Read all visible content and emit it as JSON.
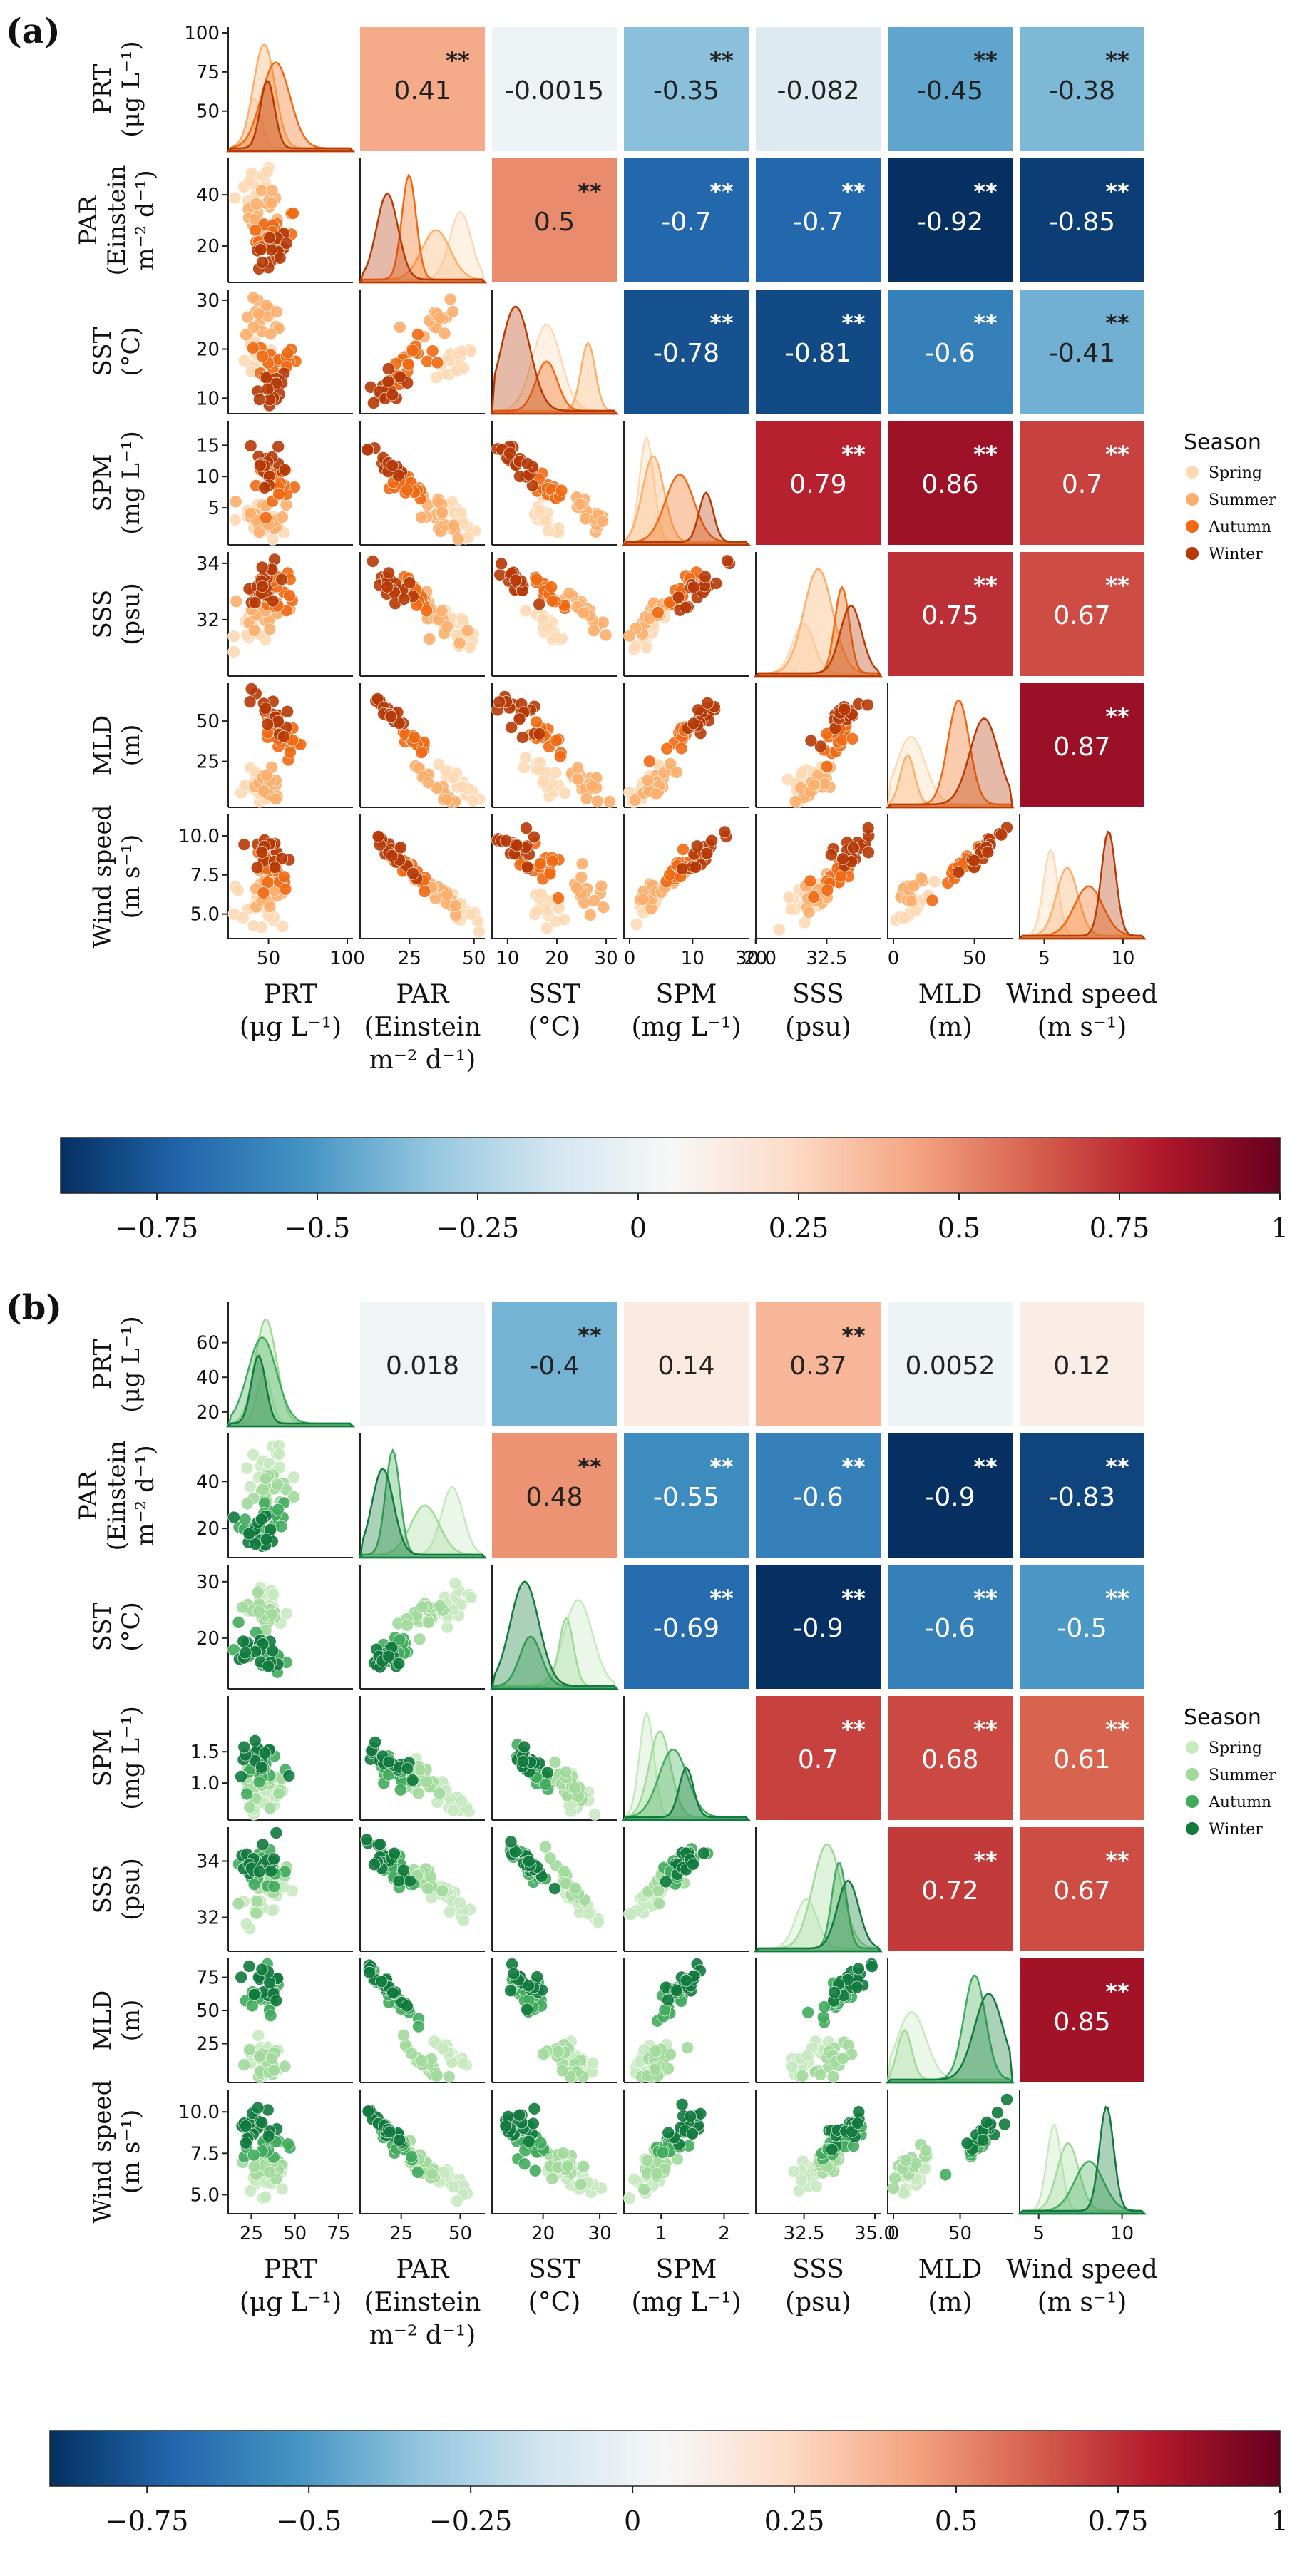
{
  "variables": [
    "PRT",
    "PAR",
    "SST",
    "SPM",
    "SSS",
    "MLD",
    "Wind speed"
  ],
  "axis_labels": [
    {
      "name": "PRT",
      "unit": "(μg L⁻¹)"
    },
    {
      "name": "PAR",
      "unit": "(Einstein",
      "unit2": "m⁻² d⁻¹)"
    },
    {
      "name": "SST",
      "unit": "(°C)"
    },
    {
      "name": "SPM",
      "unit": "(mg L⁻¹)"
    },
    {
      "name": "SSS",
      "unit": "(psu)"
    },
    {
      "name": "MLD",
      "unit": "(m)"
    },
    {
      "name": "Wind speed",
      "unit": "(m s⁻¹)"
    }
  ],
  "significance_marker": "**",
  "colorbar": {
    "type": "diverging",
    "range": [
      -0.9,
      1.0
    ],
    "ticks": [
      -0.75,
      -0.5,
      -0.25,
      0,
      0.25,
      0.5,
      0.75,
      1
    ],
    "tick_labels": [
      "−0.75",
      "−0.5",
      "−0.25",
      "0",
      "0.25",
      "0.5",
      "0.75",
      "1"
    ],
    "colors": [
      "#053061",
      "#2166ac",
      "#4393c3",
      "#92c5de",
      "#d1e5f0",
      "#f7f7f7",
      "#fddbc7",
      "#f4a582",
      "#d6604d",
      "#b2182b",
      "#67001f"
    ]
  },
  "chart_data": [
    {
      "panel": "(a)",
      "type": "heatmap",
      "title": "",
      "legend": {
        "title": "Season",
        "entries": [
          "Spring",
          "Summer",
          "Autumn",
          "Winter"
        ],
        "colors": [
          "#fdd9b4",
          "#fdae6b",
          "#f16913",
          "#b63a06"
        ],
        "placement": "right"
      },
      "correlations": [
        {
          "pair": [
            "PAR",
            "PRT"
          ],
          "r": "0.41",
          "sig": true
        },
        {
          "pair": [
            "SST",
            "PRT"
          ],
          "r": "-0.0015",
          "sig": false
        },
        {
          "pair": [
            "SPM",
            "PRT"
          ],
          "r": "-0.35",
          "sig": true
        },
        {
          "pair": [
            "SSS",
            "PRT"
          ],
          "r": "-0.082",
          "sig": false
        },
        {
          "pair": [
            "MLD",
            "PRT"
          ],
          "r": "-0.45",
          "sig": true
        },
        {
          "pair": [
            "Wind speed",
            "PRT"
          ],
          "r": "-0.38",
          "sig": true
        },
        {
          "pair": [
            "SST",
            "PAR"
          ],
          "r": "0.5",
          "sig": true
        },
        {
          "pair": [
            "SPM",
            "PAR"
          ],
          "r": "-0.7",
          "sig": true
        },
        {
          "pair": [
            "SSS",
            "PAR"
          ],
          "r": "-0.7",
          "sig": true
        },
        {
          "pair": [
            "MLD",
            "PAR"
          ],
          "r": "-0.92",
          "sig": true
        },
        {
          "pair": [
            "Wind speed",
            "PAR"
          ],
          "r": "-0.85",
          "sig": true
        },
        {
          "pair": [
            "SPM",
            "SST"
          ],
          "r": "-0.78",
          "sig": true
        },
        {
          "pair": [
            "SSS",
            "SST"
          ],
          "r": "-0.81",
          "sig": true
        },
        {
          "pair": [
            "MLD",
            "SST"
          ],
          "r": "-0.6",
          "sig": true
        },
        {
          "pair": [
            "Wind speed",
            "SST"
          ],
          "r": "-0.41",
          "sig": true
        },
        {
          "pair": [
            "SSS",
            "SPM"
          ],
          "r": "0.79",
          "sig": true
        },
        {
          "pair": [
            "MLD",
            "SPM"
          ],
          "r": "0.86",
          "sig": true
        },
        {
          "pair": [
            "Wind speed",
            "SPM"
          ],
          "r": "0.7",
          "sig": true
        },
        {
          "pair": [
            "MLD",
            "SSS"
          ],
          "r": "0.75",
          "sig": true
        },
        {
          "pair": [
            "Wind speed",
            "SSS"
          ],
          "r": "0.67",
          "sig": true
        },
        {
          "pair": [
            "Wind speed",
            "MLD"
          ],
          "r": "0.87",
          "sig": true
        }
      ],
      "y_ticks": [
        [
          {
            "v": 50,
            "l": "50"
          },
          {
            "v": 75,
            "l": "75"
          },
          {
            "v": 100,
            "l": "100"
          }
        ],
        [
          {
            "v": 20,
            "l": "20"
          },
          {
            "v": 40,
            "l": "40"
          }
        ],
        [
          {
            "v": 10,
            "l": "10"
          },
          {
            "v": 20,
            "l": "20"
          },
          {
            "v": 30,
            "l": "30"
          }
        ],
        [
          {
            "v": 5,
            "l": "5"
          },
          {
            "v": 10,
            "l": "10"
          },
          {
            "v": 15,
            "l": "15"
          }
        ],
        [
          {
            "v": 32,
            "l": "32"
          },
          {
            "v": 34,
            "l": "34"
          }
        ],
        [
          {
            "v": 25,
            "l": "25"
          },
          {
            "v": 50,
            "l": "50"
          }
        ],
        [
          {
            "v": 5,
            "l": "5.0"
          },
          {
            "v": 7.5,
            "l": "7.5"
          },
          {
            "v": 10,
            "l": "10.0"
          }
        ]
      ],
      "x_ticks": [
        [
          {
            "v": 50,
            "l": "50"
          },
          {
            "v": 100,
            "l": "100"
          }
        ],
        [
          {
            "v": 25,
            "l": "25"
          },
          {
            "v": 50,
            "l": "50"
          }
        ],
        [
          {
            "v": 10,
            "l": "10"
          },
          {
            "v": 20,
            "l": "20"
          },
          {
            "v": 30,
            "l": "30"
          }
        ],
        [
          {
            "v": 0,
            "l": "0"
          },
          {
            "v": 10,
            "l": "10"
          },
          {
            "v": 20,
            "l": "20"
          }
        ],
        [
          {
            "v": 30,
            "l": "30.0"
          },
          {
            "v": 32.5,
            "l": "32.5"
          }
        ],
        [
          {
            "v": 0,
            "l": "0"
          },
          {
            "v": 50,
            "l": "50"
          }
        ],
        [
          {
            "v": 5,
            "l": "5"
          },
          {
            "v": 10,
            "l": "10"
          }
        ]
      ],
      "ranges": [
        [
          28,
          100
        ],
        [
          8,
          52
        ],
        [
          8,
          31
        ],
        [
          0,
          18
        ],
        [
          30.2,
          34.2
        ],
        [
          0,
          70
        ],
        [
          3.8,
          11
        ]
      ],
      "season_means": [
        [
          42,
          48,
          55,
          50
        ],
        [
          44,
          35,
          25,
          17
        ],
        [
          18,
          26,
          18,
          12
        ],
        [
          3,
          4,
          8,
          12
        ],
        [
          31.7,
          32.2,
          33.0,
          33.3
        ],
        [
          12,
          10,
          40,
          55
        ],
        [
          5.5,
          6.5,
          7.8,
          9.0
        ]
      ]
    },
    {
      "panel": "(b)",
      "type": "heatmap",
      "title": "",
      "legend": {
        "title": "Season",
        "entries": [
          "Spring",
          "Summer",
          "Autumn",
          "Winter"
        ],
        "colors": [
          "#c7e9c0",
          "#a1d99b",
          "#41ab5d",
          "#117a3d"
        ],
        "placement": "right"
      },
      "correlations": [
        {
          "pair": [
            "PAR",
            "PRT"
          ],
          "r": "0.018",
          "sig": false
        },
        {
          "pair": [
            "SST",
            "PRT"
          ],
          "r": "-0.4",
          "sig": true
        },
        {
          "pair": [
            "SPM",
            "PRT"
          ],
          "r": "0.14",
          "sig": false
        },
        {
          "pair": [
            "SSS",
            "PRT"
          ],
          "r": "0.37",
          "sig": true
        },
        {
          "pair": [
            "MLD",
            "PRT"
          ],
          "r": "0.0052",
          "sig": false
        },
        {
          "pair": [
            "Wind speed",
            "PRT"
          ],
          "r": "0.12",
          "sig": false
        },
        {
          "pair": [
            "SST",
            "PAR"
          ],
          "r": "0.48",
          "sig": true
        },
        {
          "pair": [
            "SPM",
            "PAR"
          ],
          "r": "-0.55",
          "sig": true
        },
        {
          "pair": [
            "SSS",
            "PAR"
          ],
          "r": "-0.6",
          "sig": true
        },
        {
          "pair": [
            "MLD",
            "PAR"
          ],
          "r": "-0.9",
          "sig": true
        },
        {
          "pair": [
            "Wind speed",
            "PAR"
          ],
          "r": "-0.83",
          "sig": true
        },
        {
          "pair": [
            "SPM",
            "SST"
          ],
          "r": "-0.69",
          "sig": true
        },
        {
          "pair": [
            "SSS",
            "SST"
          ],
          "r": "-0.9",
          "sig": true
        },
        {
          "pair": [
            "MLD",
            "SST"
          ],
          "r": "-0.6",
          "sig": true
        },
        {
          "pair": [
            "Wind speed",
            "SST"
          ],
          "r": "-0.5",
          "sig": true
        },
        {
          "pair": [
            "SSS",
            "SPM"
          ],
          "r": "0.7",
          "sig": true
        },
        {
          "pair": [
            "MLD",
            "SPM"
          ],
          "r": "0.68",
          "sig": true
        },
        {
          "pair": [
            "Wind speed",
            "SPM"
          ],
          "r": "0.61",
          "sig": true
        },
        {
          "pair": [
            "MLD",
            "SSS"
          ],
          "r": "0.72",
          "sig": true
        },
        {
          "pair": [
            "Wind speed",
            "SSS"
          ],
          "r": "0.67",
          "sig": true
        },
        {
          "pair": [
            "Wind speed",
            "MLD"
          ],
          "r": "0.85",
          "sig": true
        }
      ],
      "y_ticks": [
        [
          {
            "v": 20,
            "l": "20"
          },
          {
            "v": 40,
            "l": "40"
          },
          {
            "v": 60,
            "l": "60"
          }
        ],
        [
          {
            "v": 20,
            "l": "20"
          },
          {
            "v": 40,
            "l": "40"
          }
        ],
        [
          {
            "v": 20,
            "l": "20"
          },
          {
            "v": 30,
            "l": "30"
          }
        ],
        [
          {
            "v": 1.0,
            "l": "1.0"
          },
          {
            "v": 1.5,
            "l": "1.5"
          }
        ],
        [
          {
            "v": 32,
            "l": "32"
          },
          {
            "v": 34,
            "l": "34"
          }
        ],
        [
          {
            "v": 25,
            "l": "25"
          },
          {
            "v": 50,
            "l": "50"
          },
          {
            "v": 75,
            "l": "75"
          }
        ],
        [
          {
            "v": 5,
            "l": "5.0"
          },
          {
            "v": 7.5,
            "l": "7.5"
          },
          {
            "v": 10,
            "l": "10.0"
          }
        ]
      ],
      "x_ticks": [
        [
          {
            "v": 25,
            "l": "25"
          },
          {
            "v": 50,
            "l": "50"
          },
          {
            "v": 75,
            "l": "75"
          }
        ],
        [
          {
            "v": 25,
            "l": "25"
          },
          {
            "v": 50,
            "l": "50"
          }
        ],
        [
          {
            "v": 20,
            "l": "20"
          },
          {
            "v": 30,
            "l": "30"
          }
        ],
        [
          {
            "v": 1,
            "l": "1"
          },
          {
            "v": 2,
            "l": "2"
          }
        ],
        [
          {
            "v": 32.5,
            "l": "32.5"
          },
          {
            "v": 35,
            "l": "35.0"
          }
        ],
        [
          {
            "v": 0,
            "l": "0"
          },
          {
            "v": 50,
            "l": "50"
          }
        ],
        [
          {
            "v": 5,
            "l": "5"
          },
          {
            "v": 10,
            "l": "10"
          }
        ]
      ],
      "ranges": [
        [
          15,
          80
        ],
        [
          10,
          58
        ],
        [
          12,
          32
        ],
        [
          0.5,
          2.3
        ],
        [
          31,
          35
        ],
        [
          0,
          85
        ],
        [
          4.2,
          11
        ]
      ],
      "season_means": [
        [
          33,
          34,
          32,
          30
        ],
        [
          46,
          35,
          22,
          18
        ],
        [
          26,
          24,
          18,
          17
        ],
        [
          0.8,
          1.0,
          1.2,
          1.4
        ],
        [
          32.6,
          33.3,
          33.7,
          34.0
        ],
        [
          15,
          10,
          60,
          70
        ],
        [
          6.0,
          6.8,
          8.0,
          9.0
        ]
      ]
    }
  ]
}
